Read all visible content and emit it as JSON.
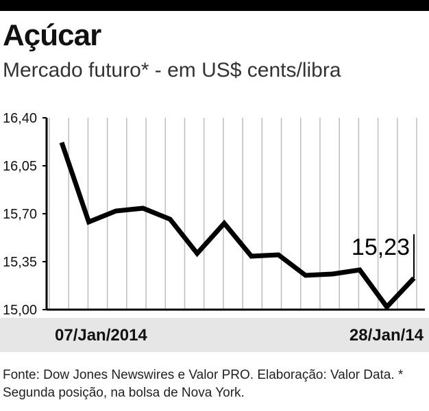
{
  "header": {
    "title": "Açúcar",
    "subtitle": "Mercado futuro* - em US$ cents/libra"
  },
  "chart_data": {
    "type": "line",
    "title": "Açúcar",
    "subtitle": "Mercado futuro* - em US$ cents/libra",
    "xlabel": "",
    "ylabel": "",
    "ylim": [
      15.0,
      16.4
    ],
    "yticks": [
      "16,40",
      "16,05",
      "15,70",
      "15,35",
      "15,00"
    ],
    "x_labels": {
      "start": "07/Jan/2014",
      "end": "28/Jan/14"
    },
    "grid": "vertical",
    "last_value_label": "15,23",
    "series": [
      {
        "values": [
          16.22,
          15.64,
          15.72,
          15.74,
          15.66,
          15.41,
          15.63,
          15.39,
          15.4,
          15.25,
          15.26,
          15.29,
          15.02,
          15.23
        ]
      }
    ]
  },
  "footer": {
    "source": "Fonte: Dow Jones Newswires e Valor PRO. Elaboração: Valor Data. * Segunda posição, na bolsa de Nova York."
  }
}
